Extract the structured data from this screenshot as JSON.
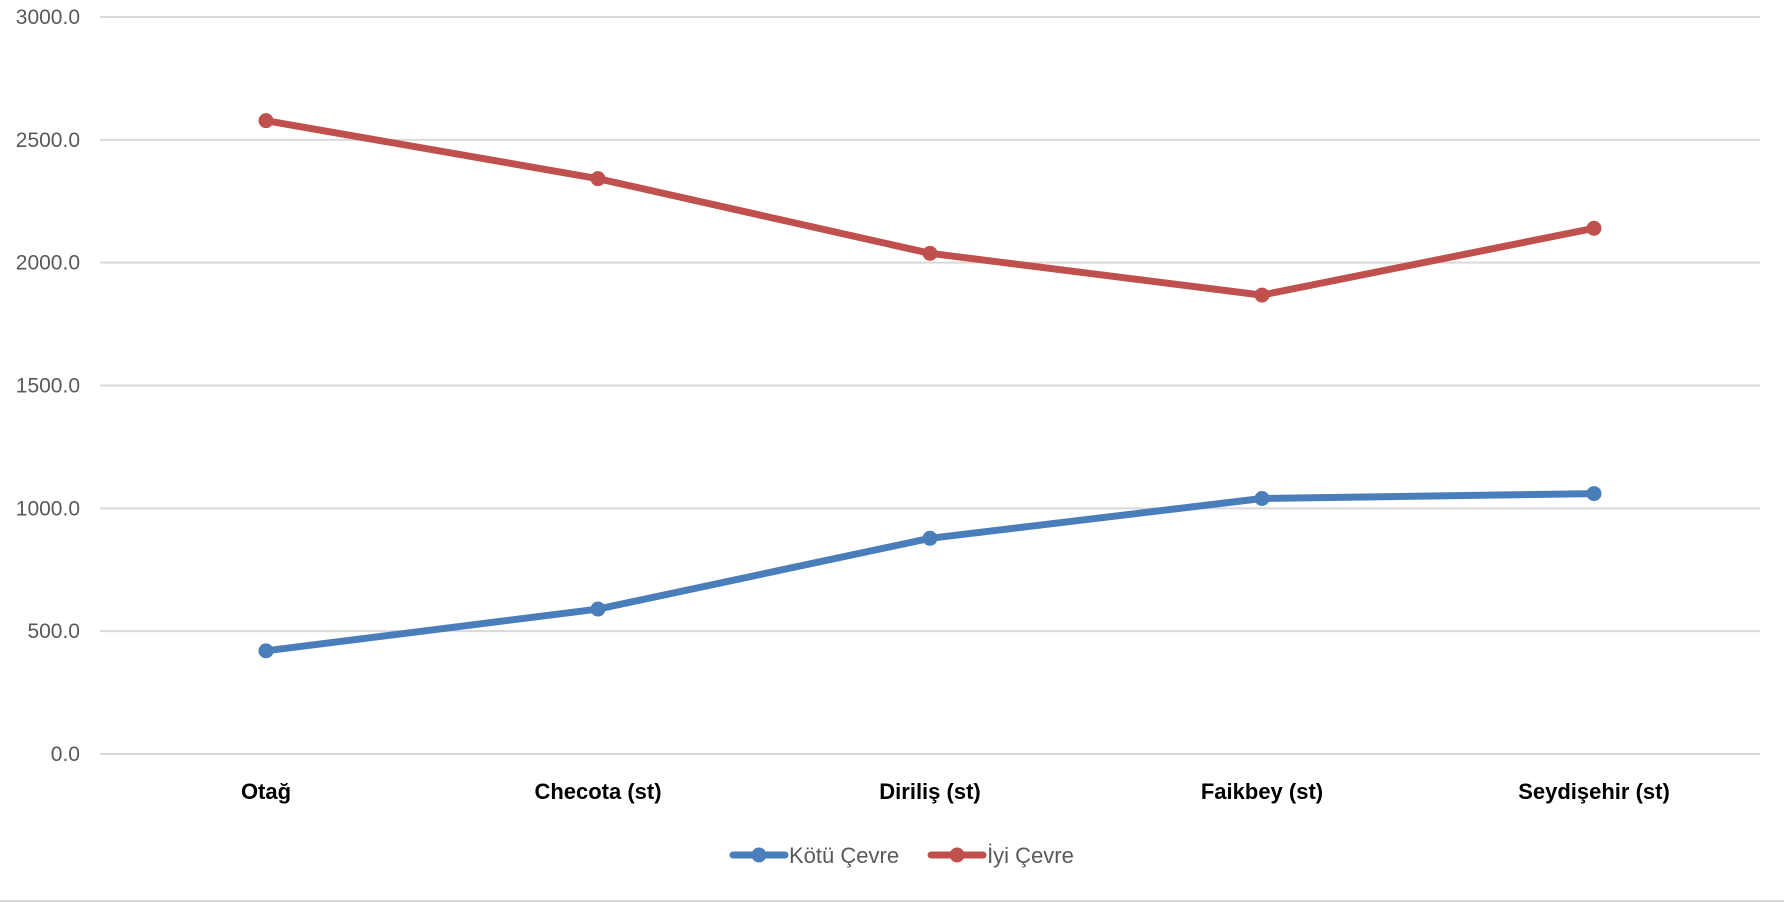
{
  "chart_data": {
    "type": "line",
    "title": "",
    "xlabel": "",
    "ylabel": "",
    "categories": [
      "Otağ",
      "Checota (st)",
      "Diriliş (st)",
      "Faikbey (st)",
      "Seydişehir (st)"
    ],
    "series": [
      {
        "name": "Kötü Çevre",
        "color": "#4a7ebb",
        "values": [
          420,
          590,
          878,
          1040,
          1060
        ]
      },
      {
        "name": "İyi Çevre",
        "color": "#c0504d",
        "values": [
          2578,
          2342,
          2038,
          1868,
          2140
        ]
      }
    ],
    "ylim": [
      0,
      3000
    ],
    "yticks": [
      0,
      500,
      1000,
      1500,
      2000,
      2500,
      3000
    ],
    "ytick_labels": [
      "0.0",
      "500.0",
      "1000.0",
      "1500.0",
      "2000.0",
      "2500.0",
      "3000.0"
    ],
    "grid": true,
    "gridline_color": "#d9d9d9",
    "legend_position": "bottom-center"
  }
}
